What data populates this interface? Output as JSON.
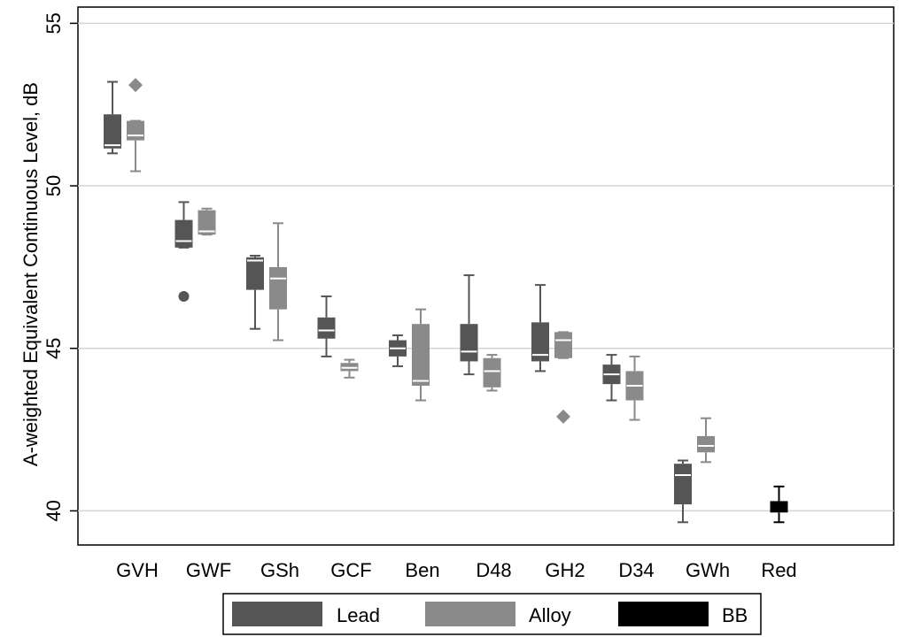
{
  "chart_data": {
    "type": "boxplot",
    "ylabel": "A-weighted Equivalent Continuous Level, dB",
    "xlabel": "",
    "ylim": [
      38.95,
      55.5
    ],
    "yticks": [
      40,
      45,
      50,
      55
    ],
    "grid": true,
    "legend_position": "bottom",
    "categories": [
      "GVH",
      "GWF",
      "GSh",
      "GCF",
      "Ben",
      "D48",
      "GH2",
      "D34",
      "GWh",
      "Red"
    ],
    "series": [
      {
        "name": "Lead",
        "color": "#555555",
        "boxes": [
          {
            "category": "GVH",
            "min": 51.0,
            "q1": 51.15,
            "median": 51.25,
            "q3": 52.2,
            "max": 53.2,
            "outliers": []
          },
          {
            "category": "GWF",
            "min": 48.1,
            "q1": 48.1,
            "median": 48.3,
            "q3": 48.95,
            "max": 49.5,
            "outliers": [
              46.6
            ]
          },
          {
            "category": "GSh",
            "min": 45.6,
            "q1": 46.8,
            "median": 47.7,
            "q3": 47.8,
            "max": 47.85,
            "outliers": []
          },
          {
            "category": "GCF",
            "min": 44.75,
            "q1": 45.3,
            "median": 45.55,
            "q3": 45.95,
            "max": 46.6,
            "outliers": []
          },
          {
            "category": "Ben",
            "min": 44.45,
            "q1": 44.75,
            "median": 45.0,
            "q3": 45.25,
            "max": 45.4,
            "outliers": []
          },
          {
            "category": "D48",
            "min": 44.2,
            "q1": 44.6,
            "median": 44.9,
            "q3": 45.75,
            "max": 47.25,
            "outliers": []
          },
          {
            "category": "GH2",
            "min": 44.3,
            "q1": 44.6,
            "median": 44.8,
            "q3": 45.8,
            "max": 46.95,
            "outliers": []
          },
          {
            "category": "D34",
            "min": 43.4,
            "q1": 43.9,
            "median": 44.2,
            "q3": 44.5,
            "max": 44.8,
            "outliers": []
          },
          {
            "category": "GWh",
            "min": 39.65,
            "q1": 40.2,
            "median": 41.1,
            "q3": 41.45,
            "max": 41.55,
            "outliers": []
          }
        ]
      },
      {
        "name": "Alloy",
        "color": "#8a8a8a",
        "boxes": [
          {
            "category": "GVH",
            "min": 50.45,
            "q1": 51.4,
            "median": 51.55,
            "q3": 52.0,
            "max": 52.0,
            "outliers": [
              53.1
            ]
          },
          {
            "category": "GWF",
            "min": 48.5,
            "q1": 48.5,
            "median": 48.6,
            "q3": 49.25,
            "max": 49.3,
            "outliers": []
          },
          {
            "category": "GSh",
            "min": 45.25,
            "q1": 46.2,
            "median": 47.15,
            "q3": 47.5,
            "max": 48.85,
            "outliers": []
          },
          {
            "category": "GCF",
            "min": 44.1,
            "q1": 44.3,
            "median": 44.4,
            "q3": 44.55,
            "max": 44.65,
            "outliers": []
          },
          {
            "category": "Ben",
            "min": 43.4,
            "q1": 43.85,
            "median": 44.0,
            "q3": 45.75,
            "max": 46.2,
            "outliers": []
          },
          {
            "category": "D48",
            "min": 43.7,
            "q1": 43.8,
            "median": 44.3,
            "q3": 44.7,
            "max": 44.8,
            "outliers": []
          },
          {
            "category": "GH2",
            "min": 44.7,
            "q1": 44.7,
            "median": 45.25,
            "q3": 45.5,
            "max": 45.5,
            "outliers": [
              42.9
            ]
          },
          {
            "category": "D34",
            "min": 42.8,
            "q1": 43.4,
            "median": 43.85,
            "q3": 44.3,
            "max": 44.75,
            "outliers": []
          },
          {
            "category": "GWh",
            "min": 41.5,
            "q1": 41.8,
            "median": 42.0,
            "q3": 42.3,
            "max": 42.85,
            "outliers": []
          }
        ]
      },
      {
        "name": "BB",
        "color": "#000000",
        "boxes": [
          {
            "category": "Red",
            "min": 39.65,
            "q1": 39.95,
            "median": 40.15,
            "q3": 40.3,
            "max": 40.75,
            "outliers": []
          }
        ]
      }
    ]
  }
}
